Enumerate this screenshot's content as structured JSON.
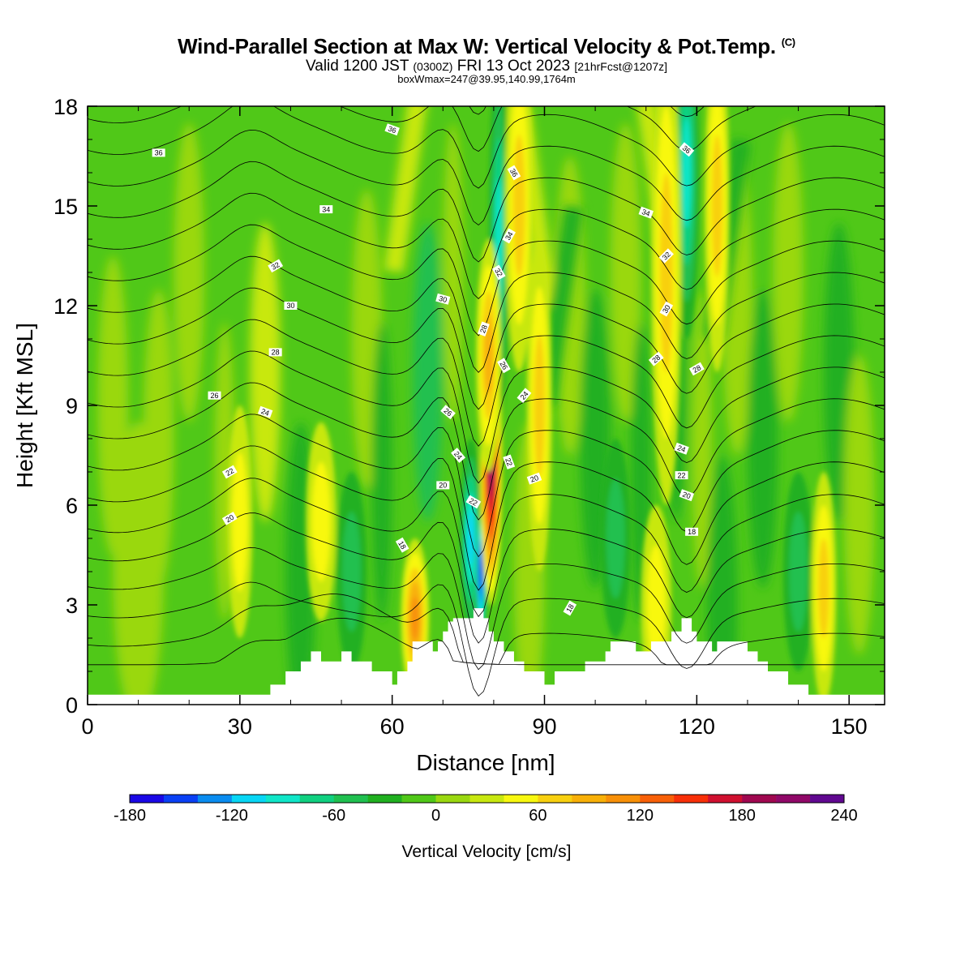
{
  "header": {
    "title": "Wind-Parallel Section at Max W: Vertical Velocity & Pot.Temp.",
    "title_mark": "(C)",
    "valid_prefix": "Valid 1200 JST",
    "valid_utc": "(0300Z)",
    "valid_date": "FRI 13 Oct 2023",
    "forecast_note": "[21hrFcst@1207z]",
    "box_info": "boxWmax=247@39.95,140.99,1764m"
  },
  "chart_data": {
    "type": "heatmap",
    "xlabel": "Distance [nm]",
    "ylabel": "Height [Kft MSL]",
    "xlim": [
      0,
      157
    ],
    "ylim": [
      0,
      18
    ],
    "x_ticks": [
      0,
      30,
      60,
      90,
      120,
      150
    ],
    "y_ticks": [
      0,
      3,
      6,
      9,
      12,
      15,
      18
    ],
    "colorbar": {
      "title": "Vertical Velocity [cm/s]",
      "tick_labels": [
        "-180",
        "-120",
        "-60",
        "0",
        "60",
        "120",
        "180",
        "240"
      ],
      "tick_values": [
        -180,
        -120,
        -60,
        0,
        60,
        120,
        180,
        240
      ],
      "bins": [
        -180,
        -160,
        -140,
        -120,
        -100,
        -80,
        -60,
        -40,
        -20,
        0,
        20,
        40,
        60,
        80,
        100,
        120,
        140,
        160,
        180,
        200,
        220,
        240
      ],
      "colors": [
        "#1a08e6",
        "#0a40f5",
        "#0a8cf0",
        "#08d6f5",
        "#10e6c8",
        "#10d080",
        "#20c050",
        "#20b020",
        "#50c818",
        "#9ad810",
        "#c8e810",
        "#f8f810",
        "#f8d010",
        "#f8b008",
        "#f89008",
        "#f86008",
        "#f83008",
        "#d01030",
        "#a00850",
        "#900868",
        "#600890"
      ]
    },
    "updrafts": [
      {
        "x": 30,
        "y": 5.5,
        "w": 2.5,
        "h": 3.5,
        "value": 40
      },
      {
        "x": 46,
        "y": 5.5,
        "w": 3,
        "h": 3,
        "value": 50
      },
      {
        "x": 64.5,
        "y": 2.6,
        "w": 2.8,
        "h": 2.4,
        "value": 100
      },
      {
        "x": 79.5,
        "y": 7.2,
        "w": 2.2,
        "h": 4.2,
        "value": 200
      },
      {
        "x": 79,
        "y": 10.5,
        "w": 2.5,
        "h": 3.5,
        "value": 80
      },
      {
        "x": 85,
        "y": 15,
        "w": 2.8,
        "h": 5,
        "value": 70
      },
      {
        "x": 89,
        "y": 9,
        "w": 2.5,
        "h": 5,
        "value": 60
      },
      {
        "x": 114,
        "y": 13,
        "w": 3,
        "h": 7,
        "value": 70
      },
      {
        "x": 124,
        "y": 15,
        "w": 2.5,
        "h": 5,
        "value": 60
      },
      {
        "x": 145,
        "y": 3.5,
        "w": 2.5,
        "h": 3.5,
        "value": 60
      },
      {
        "x": 112,
        "y": 3,
        "w": 3,
        "h": 3,
        "value": 40
      }
    ],
    "downdrafts": [
      {
        "x": 52,
        "y": 4,
        "w": 3,
        "h": 3,
        "value": -50
      },
      {
        "x": 75.5,
        "y": 5,
        "w": 2.2,
        "h": 3,
        "value": -110
      },
      {
        "x": 77.5,
        "y": 4,
        "w": 1.2,
        "h": 2.3,
        "value": -175
      },
      {
        "x": 81,
        "y": 14,
        "w": 2,
        "h": 5.5,
        "value": -90
      },
      {
        "x": 118,
        "y": 16,
        "w": 2.5,
        "h": 5,
        "value": -80
      },
      {
        "x": 140,
        "y": 4,
        "w": 3,
        "h": 3,
        "value": -50
      },
      {
        "x": 104,
        "y": 5,
        "w": 3,
        "h": 3,
        "value": -40
      }
    ],
    "terrain": [
      [
        0,
        0.3
      ],
      [
        36,
        0.3
      ],
      [
        36,
        0.6
      ],
      [
        39,
        0.6
      ],
      [
        39,
        1.0
      ],
      [
        42,
        1.0
      ],
      [
        42,
        1.3
      ],
      [
        44,
        1.3
      ],
      [
        44,
        1.6
      ],
      [
        46,
        1.6
      ],
      [
        46,
        1.3
      ],
      [
        50,
        1.3
      ],
      [
        50,
        1.6
      ],
      [
        52,
        1.6
      ],
      [
        52,
        1.3
      ],
      [
        56,
        1.3
      ],
      [
        56,
        1.0
      ],
      [
        60,
        1.0
      ],
      [
        60,
        0.6
      ],
      [
        61,
        0.6
      ],
      [
        61,
        1.0
      ],
      [
        63,
        1.0
      ],
      [
        63,
        1.3
      ],
      [
        64,
        1.3
      ],
      [
        64,
        1.9
      ],
      [
        68,
        1.9
      ],
      [
        68,
        1.6
      ],
      [
        69,
        1.6
      ],
      [
        69,
        1.9
      ],
      [
        70,
        1.9
      ],
      [
        70,
        2.2
      ],
      [
        71,
        2.2
      ],
      [
        71,
        2.5
      ],
      [
        72,
        2.5
      ],
      [
        72,
        2.6
      ],
      [
        76,
        2.6
      ],
      [
        76,
        2.9
      ],
      [
        78,
        2.9
      ],
      [
        78,
        2.6
      ],
      [
        79,
        2.6
      ],
      [
        79,
        2.2
      ],
      [
        80,
        2.2
      ],
      [
        80,
        1.9
      ],
      [
        82,
        1.9
      ],
      [
        82,
        1.6
      ],
      [
        84,
        1.6
      ],
      [
        84,
        1.3
      ],
      [
        86,
        1.3
      ],
      [
        86,
        1.0
      ],
      [
        90,
        1.0
      ],
      [
        90,
        0.6
      ],
      [
        92,
        0.6
      ],
      [
        92,
        1.0
      ],
      [
        98,
        1.0
      ],
      [
        98,
        1.3
      ],
      [
        102,
        1.3
      ],
      [
        102,
        1.6
      ],
      [
        103,
        1.6
      ],
      [
        103,
        1.9
      ],
      [
        108,
        1.9
      ],
      [
        108,
        1.6
      ],
      [
        111,
        1.6
      ],
      [
        111,
        1.9
      ],
      [
        115,
        1.9
      ],
      [
        115,
        2.2
      ],
      [
        117,
        2.2
      ],
      [
        117,
        2.6
      ],
      [
        119,
        2.6
      ],
      [
        119,
        2.2
      ],
      [
        120,
        2.2
      ],
      [
        120,
        1.9
      ],
      [
        123,
        1.9
      ],
      [
        123,
        1.6
      ],
      [
        124,
        1.6
      ],
      [
        124,
        1.9
      ],
      [
        130,
        1.9
      ],
      [
        130,
        1.6
      ],
      [
        132,
        1.6
      ],
      [
        132,
        1.3
      ],
      [
        134,
        1.3
      ],
      [
        134,
        1.0
      ],
      [
        138,
        1.0
      ],
      [
        138,
        0.6
      ],
      [
        142,
        0.6
      ],
      [
        142,
        0.3
      ],
      [
        157,
        0.3
      ]
    ],
    "isentropes": [
      16,
      18,
      20,
      22,
      24,
      26,
      28,
      30,
      32,
      34,
      36
    ],
    "contour_labels": [
      {
        "text": "36",
        "x": 14,
        "y": 16.6,
        "angle": 0
      },
      {
        "text": "36",
        "x": 60,
        "y": 17.3,
        "angle": 20
      },
      {
        "text": "36",
        "x": 84,
        "y": 16.0,
        "angle": 60
      },
      {
        "text": "36",
        "x": 118,
        "y": 16.7,
        "angle": 40
      },
      {
        "text": "34",
        "x": 47,
        "y": 14.9,
        "angle": 0
      },
      {
        "text": "34",
        "x": 83,
        "y": 14.1,
        "angle": -60
      },
      {
        "text": "34",
        "x": 110,
        "y": 14.8,
        "angle": 20
      },
      {
        "text": "32",
        "x": 37,
        "y": 13.2,
        "angle": -30
      },
      {
        "text": "32",
        "x": 81,
        "y": 13.0,
        "angle": 60
      },
      {
        "text": "32",
        "x": 114,
        "y": 13.5,
        "angle": -45
      },
      {
        "text": "30",
        "x": 40,
        "y": 12.0,
        "angle": 0
      },
      {
        "text": "30",
        "x": 70,
        "y": 12.2,
        "angle": 15
      },
      {
        "text": "30",
        "x": 114,
        "y": 11.9,
        "angle": -60
      },
      {
        "text": "28",
        "x": 37,
        "y": 10.6,
        "angle": 0
      },
      {
        "text": "28",
        "x": 78,
        "y": 11.3,
        "angle": -70
      },
      {
        "text": "28",
        "x": 112,
        "y": 10.4,
        "angle": -40
      },
      {
        "text": "28",
        "x": 120,
        "y": 10.1,
        "angle": -30
      },
      {
        "text": "26",
        "x": 25,
        "y": 9.3,
        "angle": 0
      },
      {
        "text": "26",
        "x": 82,
        "y": 10.2,
        "angle": 60
      },
      {
        "text": "26",
        "x": 71,
        "y": 8.8,
        "angle": 40
      },
      {
        "text": "24",
        "x": 35,
        "y": 8.8,
        "angle": 20
      },
      {
        "text": "24",
        "x": 86,
        "y": 9.3,
        "angle": -50
      },
      {
        "text": "24",
        "x": 73,
        "y": 7.5,
        "angle": 50
      },
      {
        "text": "24",
        "x": 117,
        "y": 7.7,
        "angle": 20
      },
      {
        "text": "22",
        "x": 28,
        "y": 7.0,
        "angle": -30
      },
      {
        "text": "22",
        "x": 83,
        "y": 7.3,
        "angle": 70
      },
      {
        "text": "22",
        "x": 76,
        "y": 6.1,
        "angle": 30
      },
      {
        "text": "22",
        "x": 117,
        "y": 6.9,
        "angle": 0
      },
      {
        "text": "20",
        "x": 28,
        "y": 5.6,
        "angle": -30
      },
      {
        "text": "20",
        "x": 70,
        "y": 6.6,
        "angle": 0
      },
      {
        "text": "20",
        "x": 88,
        "y": 6.8,
        "angle": -20
      },
      {
        "text": "20",
        "x": 118,
        "y": 6.3,
        "angle": 20
      },
      {
        "text": "18",
        "x": 62,
        "y": 4.8,
        "angle": 60
      },
      {
        "text": "18",
        "x": 95,
        "y": 2.9,
        "angle": -60
      },
      {
        "text": "18",
        "x": 119,
        "y": 5.2,
        "angle": 0
      }
    ]
  }
}
